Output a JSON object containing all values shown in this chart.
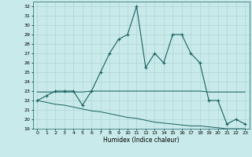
{
  "xlabel": "Humidex (Indice chaleur)",
  "bg_color": "#c8eaea",
  "grid_color": "#b0d4d4",
  "line_color": "#1a6060",
  "xlim": [
    -0.5,
    23.5
  ],
  "ylim": [
    19,
    32.5
  ],
  "yticks": [
    19,
    20,
    21,
    22,
    23,
    24,
    25,
    26,
    27,
    28,
    29,
    30,
    31,
    32
  ],
  "xticks": [
    0,
    1,
    2,
    3,
    4,
    5,
    6,
    7,
    8,
    9,
    10,
    11,
    12,
    13,
    14,
    15,
    16,
    17,
    18,
    19,
    20,
    21,
    22,
    23
  ],
  "series1_x": [
    0,
    1,
    2,
    3,
    4,
    5,
    6,
    7,
    8,
    9,
    10,
    11,
    12,
    13,
    14,
    15,
    16,
    17,
    18,
    19,
    20,
    21,
    22,
    23
  ],
  "series1_y": [
    22.0,
    22.5,
    23.0,
    23.0,
    23.0,
    21.5,
    23.0,
    25.0,
    27.0,
    28.5,
    29.0,
    32.0,
    25.5,
    27.0,
    26.0,
    29.0,
    29.0,
    27.0,
    26.0,
    22.0,
    22.0,
    19.5,
    20.0,
    19.5
  ],
  "series2_x": [
    0,
    1,
    2,
    3,
    4,
    5,
    6,
    7,
    8,
    9,
    10,
    11,
    12,
    13,
    14,
    15,
    16,
    17,
    18,
    19,
    20,
    21,
    22,
    23
  ],
  "series2_y": [
    22.9,
    22.9,
    22.9,
    22.9,
    22.9,
    22.9,
    23.0,
    23.0,
    23.0,
    23.0,
    23.0,
    23.0,
    23.0,
    23.0,
    23.0,
    23.0,
    23.0,
    23.0,
    23.0,
    22.9,
    22.9,
    22.9,
    22.9,
    22.9
  ],
  "series3_x": [
    0,
    1,
    2,
    3,
    4,
    5,
    6,
    7,
    8,
    9,
    10,
    11,
    12,
    13,
    14,
    15,
    16,
    17,
    18,
    19,
    20,
    21,
    22,
    23
  ],
  "series3_y": [
    22.0,
    21.8,
    21.6,
    21.5,
    21.3,
    21.1,
    20.9,
    20.8,
    20.6,
    20.4,
    20.2,
    20.1,
    19.9,
    19.7,
    19.6,
    19.5,
    19.4,
    19.3,
    19.3,
    19.2,
    19.1,
    19.0,
    19.0,
    19.0
  ]
}
